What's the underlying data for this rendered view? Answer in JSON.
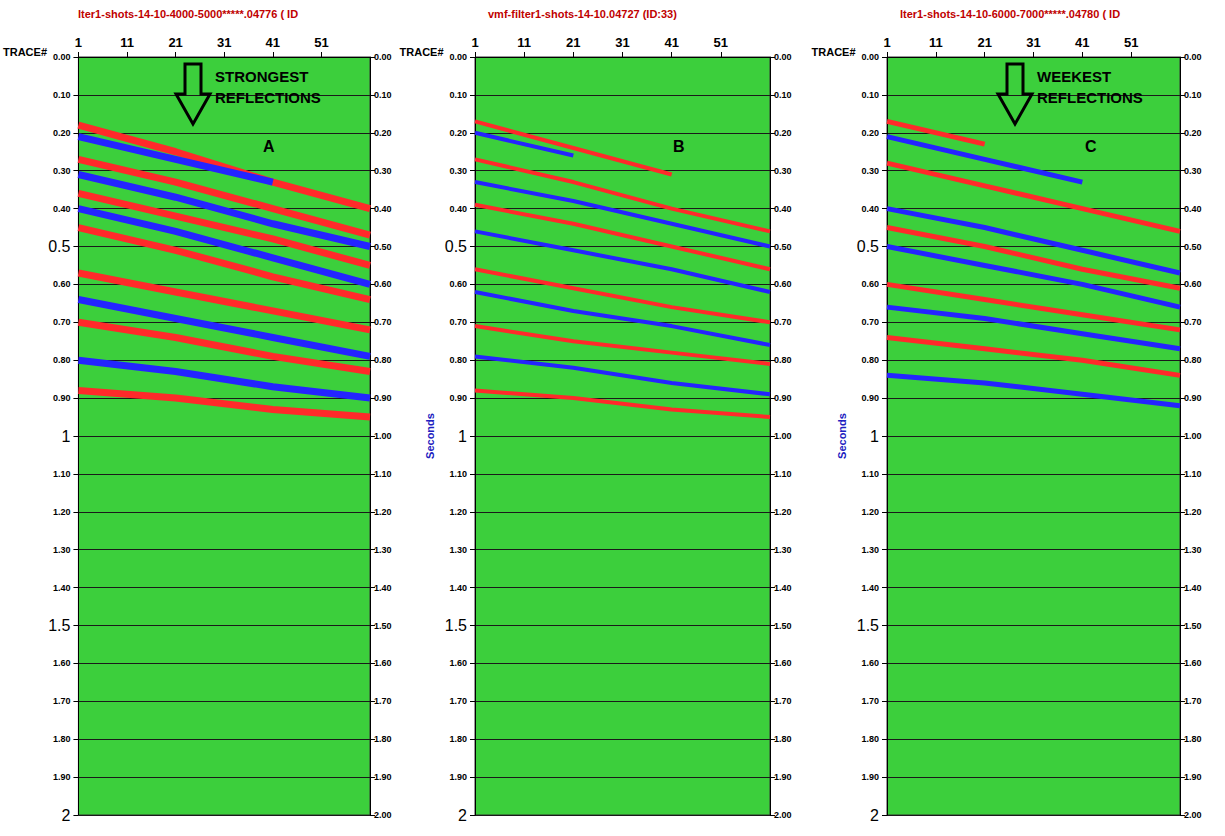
{
  "chart_data": [
    {
      "type": "line",
      "title": "lter1-shots-14-10-4000-5000*****.04776 ( ID",
      "annotation": "STRONGEST REFLECTIONS",
      "letter": "A",
      "xlabel": "TRACE#",
      "grid": true,
      "x": [
        1,
        21,
        41,
        61
      ],
      "xlim": [
        1,
        61
      ],
      "xticks": [
        1,
        11,
        21,
        31,
        41,
        51
      ],
      "ylim": [
        0,
        2
      ],
      "yticks": [
        {
          "value": 0,
          "label": "0.00"
        },
        {
          "value": 0.1,
          "label": "0.10"
        },
        {
          "value": 0.2,
          "label": "0.20"
        },
        {
          "value": 0.3,
          "label": "0.30"
        },
        {
          "value": 0.4,
          "label": "0.40"
        },
        0.5,
        {
          "value": 0.6,
          "label": "0.60"
        },
        {
          "value": 0.7,
          "label": "0.70"
        },
        {
          "value": 0.8,
          "label": "0.80"
        },
        {
          "value": 0.9,
          "label": "0.90"
        },
        1,
        {
          "value": 1.1,
          "label": "1.10"
        },
        {
          "value": 1.2,
          "label": "1.20"
        },
        {
          "value": 1.3,
          "label": "1.30"
        },
        {
          "value": 1.4,
          "label": "1.40"
        },
        1.5,
        {
          "value": 1.6,
          "label": "1.60"
        },
        {
          "value": 1.7,
          "label": "1.70"
        },
        {
          "value": 1.8,
          "label": "1.80"
        },
        {
          "value": 1.9,
          "label": "1.90"
        },
        2
      ],
      "y2lim": [
        0,
        2
      ],
      "y2ticks": [
        {
          "value": 0,
          "label": "0.00"
        },
        {
          "value": 0.1,
          "label": "0.10"
        },
        {
          "value": 0.2,
          "label": "0.20"
        },
        {
          "value": 0.3,
          "label": "0.30"
        },
        {
          "value": 0.4,
          "label": "0.40"
        },
        {
          "value": 0.5,
          "label": "0.50"
        },
        {
          "value": 0.6,
          "label": "0.60"
        },
        {
          "value": 0.7,
          "label": "0.70"
        },
        {
          "value": 0.8,
          "label": "0.80"
        },
        {
          "value": 0.9,
          "label": "0.90"
        },
        {
          "value": 1,
          "label": "1.00"
        },
        {
          "value": 1.1,
          "label": "1.10"
        },
        {
          "value": 1.2,
          "label": "1.20"
        },
        {
          "value": 1.3,
          "label": "1.30"
        },
        {
          "value": 1.4,
          "label": "1.40"
        },
        {
          "value": 1.5,
          "label": "1.50"
        },
        {
          "value": 1.6,
          "label": "1.60"
        },
        {
          "value": 1.7,
          "label": "1.70"
        },
        {
          "value": 1.8,
          "label": "1.80"
        },
        {
          "value": 1.9,
          "label": "1.90"
        },
        {
          "value": 2,
          "label": "2.00"
        }
      ],
      "series": [
        {
          "color": "#ff2a2a",
          "values": [
            0.18,
            0.25,
            0.33,
            0.4
          ]
        },
        {
          "color": "#2424ff",
          "values": [
            0.21,
            0.27,
            0.33,
            null
          ]
        },
        {
          "color": "#ff2a2a",
          "values": [
            0.27,
            0.33,
            0.4,
            0.47
          ]
        },
        {
          "color": "#2424ff",
          "values": [
            0.31,
            0.37,
            0.44,
            0.5
          ]
        },
        {
          "color": "#ff2a2a",
          "values": [
            0.36,
            0.42,
            0.48,
            0.55
          ]
        },
        {
          "color": "#2424ff",
          "values": [
            0.4,
            0.46,
            0.53,
            0.6
          ]
        },
        {
          "color": "#ff2a2a",
          "values": [
            0.45,
            0.51,
            0.58,
            0.64
          ]
        },
        {
          "color": "#ff2a2a",
          "values": [
            0.57,
            0.62,
            0.67,
            0.72
          ]
        },
        {
          "color": "#2424ff",
          "values": [
            0.64,
            0.69,
            0.74,
            0.79
          ]
        },
        {
          "color": "#ff2a2a",
          "values": [
            0.7,
            0.74,
            0.79,
            0.83
          ]
        },
        {
          "color": "#2424ff",
          "values": [
            0.8,
            0.83,
            0.87,
            0.9
          ]
        },
        {
          "color": "#ff2a2a",
          "values": [
            0.88,
            0.9,
            0.93,
            0.95
          ]
        }
      ]
    },
    {
      "type": "line",
      "title": "vmf-filter1-shots-14-10.04727 (ID:33)",
      "letter": "B",
      "xlabel": "TRACE#",
      "ylabel": "Seconds",
      "grid": true,
      "x": [
        1,
        21,
        41,
        61
      ],
      "xlim": [
        1,
        61
      ],
      "xticks": [
        1,
        11,
        21,
        31,
        41,
        51
      ],
      "ylim": [
        0,
        2
      ],
      "yticks": [
        {
          "value": 0,
          "label": "0.00"
        },
        {
          "value": 0.1,
          "label": "0.10"
        },
        {
          "value": 0.2,
          "label": "0.20"
        },
        {
          "value": 0.3,
          "label": "0.30"
        },
        {
          "value": 0.4,
          "label": "0.40"
        },
        0.5,
        {
          "value": 0.6,
          "label": "0.60"
        },
        {
          "value": 0.7,
          "label": "0.70"
        },
        {
          "value": 0.8,
          "label": "0.80"
        },
        {
          "value": 0.9,
          "label": "0.90"
        },
        1,
        {
          "value": 1.1,
          "label": "1.10"
        },
        {
          "value": 1.2,
          "label": "1.20"
        },
        {
          "value": 1.3,
          "label": "1.30"
        },
        {
          "value": 1.4,
          "label": "1.40"
        },
        1.5,
        {
          "value": 1.6,
          "label": "1.60"
        },
        {
          "value": 1.7,
          "label": "1.70"
        },
        {
          "value": 1.8,
          "label": "1.80"
        },
        {
          "value": 1.9,
          "label": "1.90"
        },
        2
      ],
      "y2lim": [
        0,
        2
      ],
      "y2ticks": [
        {
          "value": 0,
          "label": "0.00"
        },
        {
          "value": 0.1,
          "label": "0.10"
        },
        {
          "value": 0.2,
          "label": "0.20"
        },
        {
          "value": 0.3,
          "label": "0.30"
        },
        {
          "value": 0.4,
          "label": "0.40"
        },
        {
          "value": 0.5,
          "label": "0.50"
        },
        {
          "value": 0.6,
          "label": "0.60"
        },
        {
          "value": 0.7,
          "label": "0.70"
        },
        {
          "value": 0.8,
          "label": "0.80"
        },
        {
          "value": 0.9,
          "label": "0.90"
        },
        {
          "value": 1,
          "label": "1.00"
        },
        {
          "value": 1.1,
          "label": "1.10"
        },
        {
          "value": 1.2,
          "label": "1.20"
        },
        {
          "value": 1.3,
          "label": "1.30"
        },
        {
          "value": 1.4,
          "label": "1.40"
        },
        {
          "value": 1.5,
          "label": "1.50"
        },
        {
          "value": 1.6,
          "label": "1.60"
        },
        {
          "value": 1.7,
          "label": "1.70"
        },
        {
          "value": 1.8,
          "label": "1.80"
        },
        {
          "value": 1.9,
          "label": "1.90"
        },
        {
          "value": 2,
          "label": "2.00"
        }
      ],
      "series": [
        {
          "color": "#ff2a2a",
          "values": [
            0.17,
            0.24,
            0.31,
            null
          ]
        },
        {
          "color": "#2424ff",
          "values": [
            0.2,
            0.26,
            null,
            null
          ]
        },
        {
          "color": "#ff2a2a",
          "values": [
            0.27,
            0.33,
            0.4,
            0.46
          ]
        },
        {
          "color": "#2424ff",
          "values": [
            0.33,
            0.38,
            0.44,
            0.5
          ]
        },
        {
          "color": "#ff2a2a",
          "values": [
            0.39,
            0.44,
            0.5,
            0.56
          ]
        },
        {
          "color": "#2424ff",
          "values": [
            0.46,
            0.51,
            0.56,
            0.62
          ]
        },
        {
          "color": "#ff2a2a",
          "values": [
            0.56,
            0.61,
            0.66,
            0.7
          ]
        },
        {
          "color": "#2424ff",
          "values": [
            0.62,
            0.67,
            0.71,
            0.76
          ]
        },
        {
          "color": "#ff2a2a",
          "values": [
            0.71,
            0.75,
            0.78,
            0.81
          ]
        },
        {
          "color": "#2424ff",
          "values": [
            0.79,
            0.82,
            0.86,
            0.89
          ]
        },
        {
          "color": "#ff2a2a",
          "values": [
            0.88,
            0.9,
            0.93,
            0.95
          ]
        }
      ]
    },
    {
      "type": "line",
      "title": "lter1-shots-14-10-6000-7000*****.04780 ( ID",
      "annotation": "WEEKEST REFLECTIONS",
      "letter": "C",
      "xlabel": "TRACE#",
      "ylabel": "Seconds",
      "grid": true,
      "x": [
        1,
        21,
        41,
        61
      ],
      "xlim": [
        1,
        61
      ],
      "xticks": [
        1,
        11,
        21,
        31,
        41,
        51
      ],
      "ylim": [
        0,
        2
      ],
      "yticks": [
        {
          "value": 0,
          "label": "0.00"
        },
        {
          "value": 0.1,
          "label": "0.10"
        },
        {
          "value": 0.2,
          "label": "0.20"
        },
        {
          "value": 0.3,
          "label": "0.30"
        },
        {
          "value": 0.4,
          "label": "0.40"
        },
        0.5,
        {
          "value": 0.6,
          "label": "0.60"
        },
        {
          "value": 0.7,
          "label": "0.70"
        },
        {
          "value": 0.8,
          "label": "0.80"
        },
        {
          "value": 0.9,
          "label": "0.90"
        },
        1,
        {
          "value": 1.1,
          "label": "1.10"
        },
        {
          "value": 1.2,
          "label": "1.20"
        },
        {
          "value": 1.3,
          "label": "1.30"
        },
        {
          "value": 1.4,
          "label": "1.40"
        },
        1.5,
        {
          "value": 1.6,
          "label": "1.60"
        },
        {
          "value": 1.7,
          "label": "1.70"
        },
        {
          "value": 1.8,
          "label": "1.80"
        },
        {
          "value": 1.9,
          "label": "1.90"
        },
        2
      ],
      "y2lim": [
        0,
        2
      ],
      "y2ticks": [
        {
          "value": 0,
          "label": "0.00"
        },
        {
          "value": 0.1,
          "label": "0.10"
        },
        {
          "value": 0.2,
          "label": "0.20"
        },
        {
          "value": 0.3,
          "label": "0.30"
        },
        {
          "value": 0.4,
          "label": "0.40"
        },
        {
          "value": 0.5,
          "label": "0.50"
        },
        {
          "value": 0.6,
          "label": "0.60"
        },
        {
          "value": 0.7,
          "label": "0.70"
        },
        {
          "value": 0.8,
          "label": "0.80"
        },
        {
          "value": 0.9,
          "label": "0.90"
        },
        {
          "value": 1,
          "label": "1.00"
        },
        {
          "value": 1.1,
          "label": "1.10"
        },
        {
          "value": 1.2,
          "label": "1.20"
        },
        {
          "value": 1.3,
          "label": "1.30"
        },
        {
          "value": 1.4,
          "label": "1.40"
        },
        {
          "value": 1.5,
          "label": "1.50"
        },
        {
          "value": 1.6,
          "label": "1.60"
        },
        {
          "value": 1.7,
          "label": "1.70"
        },
        {
          "value": 1.8,
          "label": "1.80"
        },
        {
          "value": 1.9,
          "label": "1.90"
        },
        {
          "value": 2,
          "label": "2.00"
        }
      ],
      "series": [
        {
          "color": "#ff2a2a",
          "values": [
            0.17,
            0.23,
            null,
            null
          ]
        },
        {
          "color": "#2424ff",
          "values": [
            0.21,
            0.27,
            0.33,
            null
          ]
        },
        {
          "color": "#ff2a2a",
          "values": [
            0.28,
            0.34,
            0.4,
            0.46
          ]
        },
        {
          "color": "#2424ff",
          "values": [
            0.4,
            0.45,
            0.51,
            0.57
          ]
        },
        {
          "color": "#ff2a2a",
          "values": [
            0.45,
            0.5,
            0.56,
            0.61
          ]
        },
        {
          "color": "#2424ff",
          "values": [
            0.5,
            0.55,
            0.6,
            0.66
          ]
        },
        {
          "color": "#ff2a2a",
          "values": [
            0.6,
            0.64,
            0.68,
            0.72
          ]
        },
        {
          "color": "#2424ff",
          "values": [
            0.66,
            0.69,
            0.73,
            0.77
          ]
        },
        {
          "color": "#ff2a2a",
          "values": [
            0.74,
            0.77,
            0.8,
            0.84
          ]
        },
        {
          "color": "#2424ff",
          "values": [
            0.84,
            0.86,
            0.89,
            0.92
          ]
        }
      ]
    }
  ]
}
